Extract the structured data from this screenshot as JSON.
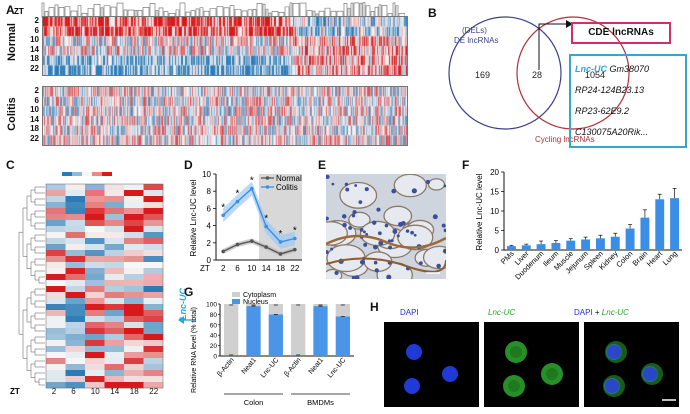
{
  "panelA": {
    "label": "A",
    "zt_header": "ZT",
    "groups": [
      {
        "name": "Normal",
        "rows": [
          "2",
          "6",
          "10",
          "14",
          "18",
          "22"
        ]
      },
      {
        "name": "Colitis",
        "rows": [
          "2",
          "6",
          "10",
          "14",
          "18",
          "22"
        ]
      }
    ],
    "colors": {
      "high": "#d7191c",
      "low": "#2c7bb6",
      "mid": "#f7f7f7"
    }
  },
  "panelB": {
    "label": "B",
    "set1_label_line1": "(DELs)",
    "set1_label_line2": "DE lncRNAs",
    "set2_label": "Cycling lncRNAs",
    "left_only": "169",
    "overlap": "28",
    "right_only": "1054",
    "cde_title": "CDE lncRNAs",
    "cde_list": [
      {
        "highlight": "Lnc-UC",
        "rest": " Gm38070"
      },
      {
        "highlight": "",
        "rest": "RP24-124B23.13"
      },
      {
        "highlight": "",
        "rest": "RP23-62E9.2"
      },
      {
        "highlight": "",
        "rest": "C130075A20Rik..."
      }
    ],
    "colors": {
      "set1": "#3b3f8f",
      "set2": "#b0303a",
      "cde_box": "#d0306a",
      "list_box": "#35a8c8",
      "highlight": "#2aa6d9"
    }
  },
  "panelC": {
    "label": "C",
    "zt_label": "ZT",
    "columns": [
      "2",
      "6",
      "10",
      "14",
      "18",
      "22"
    ],
    "annotation": "Lnc-UC",
    "annotation_color": "#2aa6d9"
  },
  "panelD": {
    "label": "D",
    "ylabel": "Relative Lnc-UC level",
    "legend": [
      "Normal",
      "Colitis"
    ],
    "zt_label": "ZT",
    "chart_data": {
      "type": "line",
      "x": [
        2,
        6,
        10,
        14,
        18,
        22
      ],
      "series": [
        {
          "name": "Normal",
          "values": [
            1.0,
            1.8,
            2.2,
            1.5,
            0.7,
            1.2
          ],
          "color": "#555555"
        },
        {
          "name": "Colitis",
          "values": [
            5.2,
            6.8,
            8.3,
            3.9,
            2.1,
            2.5
          ],
          "color": "#3a8ee6"
        }
      ],
      "ylim": [
        0,
        10
      ],
      "yticks": [
        0,
        2,
        4,
        6,
        8,
        10
      ],
      "significance": [
        "*",
        "*",
        "*",
        "*",
        "*",
        "*"
      ]
    }
  },
  "panelE": {
    "label": "E"
  },
  "panelF": {
    "label": "F",
    "ylabel": "Relative Lnc-UC level",
    "chart_data": {
      "type": "bar",
      "categories": [
        "PMs",
        "Liver",
        "Duodenum",
        "Ileum",
        "Muscle",
        "Jejunum",
        "Spleen",
        "Kidney",
        "Colon",
        "Brain",
        "Heart",
        "Lung"
      ],
      "values": [
        1.0,
        1.2,
        1.5,
        1.8,
        2.4,
        2.7,
        3.0,
        3.4,
        5.5,
        8.3,
        13.0,
        13.3
      ],
      "errors": [
        0.2,
        0.3,
        0.8,
        0.6,
        0.5,
        0.6,
        0.8,
        0.9,
        1.0,
        2.0,
        1.3,
        2.5
      ],
      "ylim": [
        0,
        20
      ],
      "yticks": [
        0,
        5,
        10,
        15,
        20
      ],
      "color": "#3a8ee6"
    }
  },
  "panelG": {
    "label": "G",
    "ylabel": "Relative RNA level (% total)",
    "legend": [
      "Cytoplasm",
      "Nucleus"
    ],
    "chart_data": {
      "type": "bar",
      "categories": [
        "β-Actin",
        "Neat1",
        "Lnc-UC",
        "β-Actin",
        "Neat1",
        "Lnc-UC"
      ],
      "series": [
        {
          "name": "Nucleus",
          "values": [
            2,
            96,
            80,
            2,
            96,
            76
          ],
          "color": "#4a95e8"
        },
        {
          "name": "Cytoplasm",
          "values": [
            98,
            4,
            20,
            98,
            4,
            24
          ],
          "color": "#cfcfcf"
        }
      ],
      "groups": [
        {
          "name": "Colon"
        },
        {
          "name": "BMDMs"
        }
      ],
      "ylim": [
        0,
        100
      ],
      "yticks": [
        0,
        20,
        40,
        60,
        80,
        100
      ]
    }
  },
  "panelH": {
    "label": "H",
    "titles": [
      {
        "parts": [
          {
            "t": "DAPI",
            "c": "#2233cc",
            "i": false
          }
        ]
      },
      {
        "parts": [
          {
            "t": "Lnc-UC",
            "c": "#22aa22",
            "i": true
          }
        ]
      },
      {
        "parts": [
          {
            "t": "DAPI",
            "c": "#2233cc",
            "i": false
          },
          {
            "t": " + ",
            "c": "#111111",
            "i": false
          },
          {
            "t": "Lnc-UC",
            "c": "#22aa22",
            "i": true
          }
        ]
      }
    ]
  }
}
